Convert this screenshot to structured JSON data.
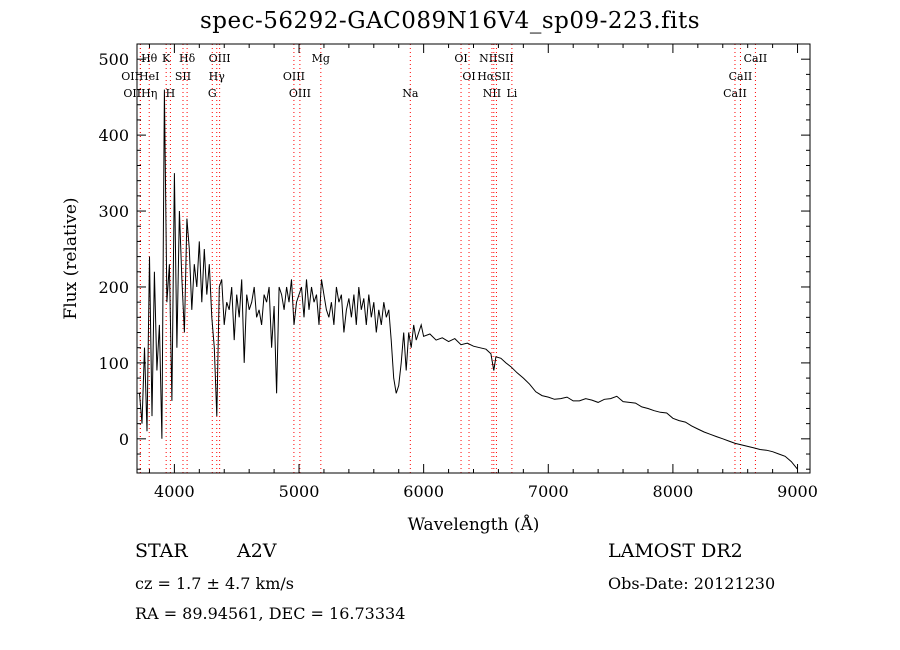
{
  "title": "spec-56292-GAC089N16V4_sp09-223.fits",
  "footer": {
    "object_class": "STAR",
    "subclass": "A2V",
    "survey": "LAMOST DR2",
    "cz": "cz = 1.7 ± 4.7 km/s",
    "obs_date": "Obs-Date: 20121230",
    "radec": "RA =  89.94561, DEC =  16.73334"
  },
  "colors": {
    "line_marker": "#ff0000",
    "spectrum": "#000000",
    "axis": "#000000"
  },
  "chart_data": {
    "type": "line",
    "title": "spec-56292-GAC089N16V4_sp09-223.fits",
    "xlabel": "Wavelength (Å)",
    "ylabel": "Flux (relative)",
    "xlim": [
      3700,
      9100
    ],
    "ylim": [
      -45,
      520
    ],
    "x_ticks": [
      4000,
      5000,
      6000,
      7000,
      8000,
      9000
    ],
    "y_ticks": [
      0,
      100,
      200,
      300,
      400,
      500
    ],
    "grid": false,
    "series": [
      {
        "x": [
          3720,
          3740,
          3760,
          3780,
          3800,
          3820,
          3840,
          3860,
          3880,
          3900,
          3920,
          3940,
          3960,
          3980,
          4000,
          4020,
          4040,
          4060,
          4080,
          4100,
          4120,
          4140,
          4160,
          4180,
          4200,
          4220,
          4240,
          4260,
          4280,
          4300,
          4320,
          4340,
          4360,
          4380,
          4400,
          4420,
          4440,
          4460,
          4480,
          4500,
          4520,
          4540,
          4560,
          4580,
          4600,
          4620,
          4640,
          4660,
          4680,
          4700,
          4720,
          4740,
          4760,
          4780,
          4800,
          4820,
          4840,
          4860,
          4880,
          4900,
          4920,
          4940,
          4960,
          4980,
          5000,
          5020,
          5040,
          5060,
          5080,
          5100,
          5120,
          5140,
          5160,
          5180,
          5200,
          5220,
          5240,
          5260,
          5280,
          5300,
          5320,
          5340,
          5360,
          5380,
          5400,
          5420,
          5440,
          5460,
          5480,
          5500,
          5520,
          5540,
          5560,
          5580,
          5600,
          5620,
          5640,
          5660,
          5680,
          5700,
          5720,
          5740,
          5760,
          5780,
          5800,
          5820,
          5840,
          5860,
          5880,
          5900,
          5920,
          5940,
          5960,
          5980,
          6000,
          6050,
          6100,
          6150,
          6200,
          6250,
          6300,
          6350,
          6400,
          6450,
          6500,
          6540,
          6563,
          6580,
          6620,
          6660,
          6700,
          6750,
          6800,
          6850,
          6900,
          6950,
          7000,
          7050,
          7100,
          7150,
          7200,
          7250,
          7300,
          7350,
          7400,
          7450,
          7500,
          7550,
          7600,
          7650,
          7700,
          7750,
          7800,
          7850,
          7900,
          7950,
          8000,
          8050,
          8100,
          8150,
          8200,
          8250,
          8300,
          8350,
          8400,
          8450,
          8500,
          8550,
          8600,
          8650,
          8700,
          8750,
          8800,
          8850,
          8900,
          8950,
          9000
        ],
        "y": [
          60,
          20,
          120,
          10,
          240,
          30,
          220,
          90,
          150,
          0,
          460,
          180,
          230,
          50,
          350,
          120,
          300,
          210,
          140,
          290,
          250,
          170,
          230,
          200,
          260,
          180,
          250,
          190,
          230,
          160,
          120,
          30,
          200,
          210,
          150,
          180,
          170,
          200,
          130,
          190,
          160,
          210,
          100,
          190,
          170,
          180,
          200,
          160,
          170,
          150,
          190,
          180,
          200,
          120,
          175,
          60,
          200,
          190,
          170,
          200,
          180,
          210,
          150,
          180,
          190,
          200,
          160,
          210,
          170,
          200,
          180,
          190,
          150,
          210,
          190,
          170,
          160,
          180,
          150,
          200,
          180,
          190,
          140,
          170,
          185,
          160,
          190,
          150,
          200,
          170,
          185,
          150,
          190,
          160,
          180,
          140,
          170,
          150,
          180,
          160,
          170,
          130,
          80,
          60,
          70,
          100,
          140,
          90,
          140,
          120,
          150,
          130,
          140,
          150,
          135,
          138,
          130,
          133,
          128,
          132,
          124,
          126,
          122,
          120,
          118,
          112,
          90,
          108,
          106,
          100,
          95,
          87,
          80,
          72,
          62,
          57,
          55,
          52,
          53,
          55,
          50,
          50,
          53,
          51,
          48,
          52,
          53,
          56,
          49,
          48,
          47,
          42,
          40,
          37,
          35,
          34,
          27,
          24,
          22,
          17,
          13,
          9,
          6,
          3,
          0,
          -3,
          -6,
          -8,
          -10,
          -12,
          -14,
          -15,
          -17,
          -20,
          -23,
          -30,
          -40
        ]
      }
    ],
    "line_markers": [
      {
        "label": "Hθ",
        "wavelength": 3798,
        "row": 0
      },
      {
        "label": "K",
        "wavelength": 3934,
        "row": 0
      },
      {
        "label": "Hδ",
        "wavelength": 4102,
        "row": 0
      },
      {
        "label": "OIII",
        "wavelength": 4363,
        "row": 0
      },
      {
        "label": "Mg",
        "wavelength": 5175,
        "row": 0
      },
      {
        "label": "OI",
        "wavelength": 6300,
        "row": 0
      },
      {
        "label": "NIISII",
        "wavelength": 6584,
        "row": 0
      },
      {
        "label": "CaII",
        "wavelength": 8662,
        "row": 0
      },
      {
        "label": "OIIHeI",
        "wavelength": 3727,
        "row": 1
      },
      {
        "label": "SII",
        "wavelength": 4069,
        "row": 1
      },
      {
        "label": "Hγ",
        "wavelength": 4340,
        "row": 1
      },
      {
        "label": "OIII",
        "wavelength": 4959,
        "row": 1
      },
      {
        "label": "OI",
        "wavelength": 6364,
        "row": 1
      },
      {
        "label": "HαSII",
        "wavelength": 6563,
        "row": 1
      },
      {
        "label": "CaII",
        "wavelength": 8542,
        "row": 1
      },
      {
        "label": "OIIHη",
        "wavelength": 3727,
        "row": 2
      },
      {
        "label": "H",
        "wavelength": 3968,
        "row": 2
      },
      {
        "label": "G",
        "wavelength": 4304,
        "row": 2
      },
      {
        "label": "OIII",
        "wavelength": 5007,
        "row": 2
      },
      {
        "label": "Na",
        "wavelength": 5893,
        "row": 2
      },
      {
        "label": "NII",
        "wavelength": 6548,
        "row": 2
      },
      {
        "label": "Li",
        "wavelength": 6708,
        "row": 2
      },
      {
        "label": "CaII",
        "wavelength": 8498,
        "row": 2
      }
    ]
  }
}
